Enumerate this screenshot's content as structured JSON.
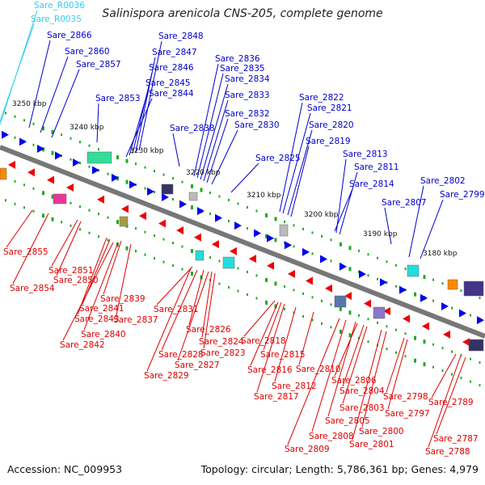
{
  "header": {
    "title": "Salinispora arenicola CNS-205, complete genome"
  },
  "footer": {
    "accession": "Accession: NC_009953",
    "summary": "Topology: circular; Length: 5,786,361 bp; Genes: 4,979"
  },
  "colors": {
    "forward_label": "#0000cc",
    "reverse_label": "#dd0000",
    "rna_label": "#33ccee",
    "backbone": "#777777",
    "tick_marker": "#22aa22"
  },
  "scale_labels": [
    "3250 kbp",
    "3240 kbp",
    "3230 kbp",
    "3220 kbp",
    "3210 kbp",
    "3200 kbp",
    "3190 kbp",
    "3180 kbp"
  ],
  "rna_genes": [
    "Sare_R0036",
    "Sare_R0035"
  ],
  "forward_genes": [
    "Sare_2866",
    "Sare_2860",
    "Sare_2857",
    "Sare_2853",
    "Sare_2848",
    "Sare_2847",
    "Sare_2846",
    "Sare_2845",
    "Sare_2844",
    "Sare_2838",
    "Sare_2836",
    "Sare_2835",
    "Sare_2834",
    "Sare_2833",
    "Sare_2832",
    "Sare_2830",
    "Sare_2825",
    "Sare_2822",
    "Sare_2821",
    "Sare_2820",
    "Sare_2819",
    "Sare_2814",
    "Sare_2813",
    "Sare_2811",
    "Sare_2807",
    "Sare_2802",
    "Sare_2799"
  ],
  "reverse_genes": [
    "Sare_2855",
    "Sare_2854",
    "Sare_2851",
    "Sare_2850",
    "Sare_2843",
    "Sare_2841",
    "Sare_2839",
    "Sare_2837",
    "Sare_2842",
    "Sare_2840",
    "Sare_2831",
    "Sare_2826",
    "Sare_2824",
    "Sare_2823",
    "Sare_2828",
    "Sare_2827",
    "Sare_2829",
    "Sare_2818",
    "Sare_2815",
    "Sare_2816",
    "Sare_2817",
    "Sare_2812",
    "Sare_2810",
    "Sare_2806",
    "Sare_2804",
    "Sare_2803",
    "Sare_2805",
    "Sare_2808",
    "Sare_2809",
    "Sare_2800",
    "Sare_2801",
    "Sare_2798",
    "Sare_2797",
    "Sare_2789",
    "Sare_2787",
    "Sare_2788"
  ]
}
